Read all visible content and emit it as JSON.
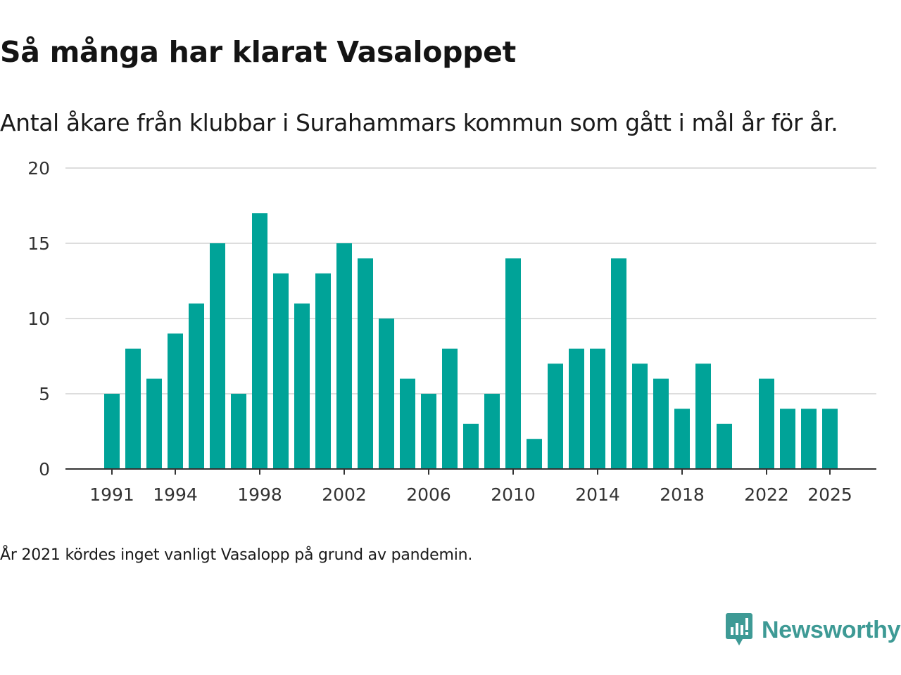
{
  "title": "Så många har klarat Vasaloppet",
  "subtitle": "Antal åkare från klubbar i Surahammars kommun som gått i mål år för år.",
  "footnote": "År 2021 kördes inget vanligt Vasalopp på grund av pandemin.",
  "brand": {
    "name": "Newsworthy",
    "color": "#3e9a95"
  },
  "chart_data": {
    "type": "bar",
    "x": [
      1991,
      1992,
      1993,
      1994,
      1995,
      1996,
      1997,
      1998,
      1999,
      2000,
      2001,
      2002,
      2003,
      2004,
      2005,
      2006,
      2007,
      2008,
      2009,
      2010,
      2011,
      2012,
      2013,
      2014,
      2015,
      2016,
      2017,
      2018,
      2019,
      2020,
      2021,
      2022,
      2023,
      2024,
      2025
    ],
    "values": [
      5,
      8,
      6,
      9,
      11,
      15,
      5,
      17,
      13,
      11,
      13,
      15,
      14,
      10,
      6,
      5,
      8,
      3,
      5,
      14,
      2,
      7,
      8,
      8,
      14,
      7,
      6,
      4,
      7,
      3,
      null,
      6,
      4,
      4,
      4
    ],
    "x_tick_labels": [
      1991,
      1994,
      1998,
      2002,
      2006,
      2010,
      2014,
      2018,
      2022,
      2025
    ],
    "y_ticks": [
      0,
      5,
      10,
      15,
      20
    ],
    "ylim": [
      0,
      20
    ],
    "grid": true,
    "bar_color": "#00a398",
    "xlabel": "",
    "ylabel": ""
  }
}
